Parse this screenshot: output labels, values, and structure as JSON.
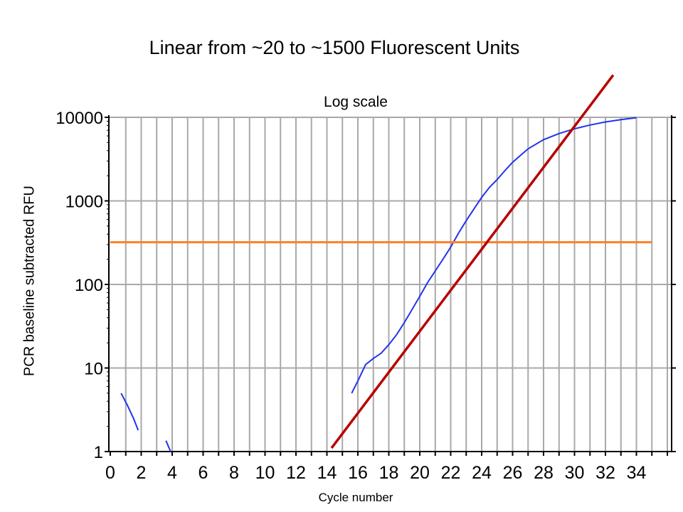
{
  "slide": {
    "title": "Linear from ~20 to ~1500 Fluorescent Units"
  },
  "chart_data": {
    "type": "line",
    "title": "Log scale",
    "xlabel": "Cycle number",
    "ylabel": "PCR baseline subtracted RFU",
    "y_scale": "log",
    "xlim": [
      0,
      35
    ],
    "ylim": [
      1,
      10000
    ],
    "x_ticks": [
      0,
      2,
      4,
      6,
      8,
      10,
      12,
      14,
      16,
      18,
      20,
      22,
      24,
      26,
      28,
      30,
      32,
      34
    ],
    "x_tick_labels": [
      "0",
      "2",
      "4",
      "6",
      "8",
      "10",
      "12",
      "14",
      "16",
      "18",
      "20",
      "22",
      "24",
      "26",
      "28",
      "30",
      "32",
      "34"
    ],
    "y_ticks": [
      1,
      10,
      100,
      1000,
      10000
    ],
    "y_tick_labels": [
      "1",
      "10",
      "100",
      "1000",
      "10000"
    ],
    "grid": true,
    "colors": {
      "amplification": "#2233ee",
      "threshold": "#ff7f27",
      "fit": "#b80000",
      "grid": "#a9a9a9"
    },
    "series": [
      {
        "role": "amplification",
        "segments": [
          [
            [
              0.7,
              5
            ],
            [
              1.1,
              3.6
            ],
            [
              1.5,
              2.5
            ],
            [
              1.8,
              1.8
            ]
          ],
          [
            [
              3.6,
              1.35
            ],
            [
              3.9,
              1.0
            ]
          ],
          [
            [
              15.6,
              5
            ],
            [
              16,
              7
            ],
            [
              16.5,
              11
            ],
            [
              17,
              13
            ],
            [
              17.5,
              15
            ],
            [
              18,
              19
            ],
            [
              18.5,
              25
            ],
            [
              19,
              35
            ],
            [
              19.5,
              50
            ],
            [
              20,
              72
            ],
            [
              20.5,
              105
            ],
            [
              21,
              145
            ],
            [
              21.5,
              200
            ],
            [
              22,
              280
            ],
            [
              22.5,
              410
            ],
            [
              23,
              580
            ],
            [
              23.5,
              800
            ],
            [
              24,
              1100
            ],
            [
              24.5,
              1450
            ],
            [
              25,
              1800
            ],
            [
              25.5,
              2300
            ],
            [
              26,
              2900
            ],
            [
              26.5,
              3500
            ],
            [
              27,
              4200
            ],
            [
              28,
              5400
            ],
            [
              29,
              6400
            ],
            [
              30,
              7300
            ],
            [
              31,
              8100
            ],
            [
              32,
              8800
            ],
            [
              33,
              9400
            ],
            [
              34,
              9900
            ]
          ]
        ]
      },
      {
        "role": "threshold",
        "points": [
          [
            0,
            320
          ],
          [
            35,
            320
          ]
        ]
      },
      {
        "role": "fit",
        "points": [
          [
            14.3,
            1.1
          ],
          [
            32.5,
            32000
          ]
        ]
      }
    ]
  }
}
